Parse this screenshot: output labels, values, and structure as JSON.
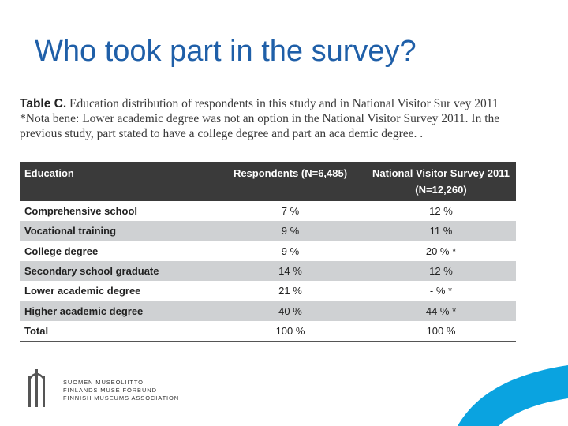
{
  "slide": {
    "title": "Who took part in the survey?"
  },
  "caption": {
    "label": "Table C.",
    "text": " Education distribution of respondents in this study and in National Visitor Sur vey 2011 *Nota bene: Lower academic degree was not an option in the National Visitor Survey 2011. In the previous study, part stated to have a college degree and part an aca demic degree. ."
  },
  "table": {
    "headers": [
      "Education",
      "Respondents (N=6,485)",
      "National Visitor Survey 2011 (N=12,260)"
    ],
    "rows": [
      {
        "education": "Comprehensive school",
        "respondents": "7 %",
        "nvs": "12 %"
      },
      {
        "education": "Vocational training",
        "respondents": "9 %",
        "nvs": "11 %"
      },
      {
        "education": "College degree",
        "respondents": "9 %",
        "nvs": "20 % *"
      },
      {
        "education": "Secondary school graduate",
        "respondents": "14 %",
        "nvs": "12 %"
      },
      {
        "education": "Lower academic degree",
        "respondents": "21 %",
        "nvs": "- % *"
      },
      {
        "education": "Higher academic degree",
        "respondents": "40 %",
        "nvs": "44 % *"
      },
      {
        "education": "Total",
        "respondents": "100 %",
        "nvs": "100 %"
      }
    ]
  },
  "logo": {
    "lines": [
      "SUOMEN MUSEOLIITTO",
      "FINLANDS MUSEIFÖRBUND",
      "FINNISH MUSEUMS ASSOCIATION"
    ],
    "icon": "museum-association-logo-icon"
  },
  "colors": {
    "title": "#1f5fa8",
    "header_bg": "#3a3a3a",
    "row_shade": "#cfd1d3",
    "corner_accent": "#0aa3e0"
  }
}
